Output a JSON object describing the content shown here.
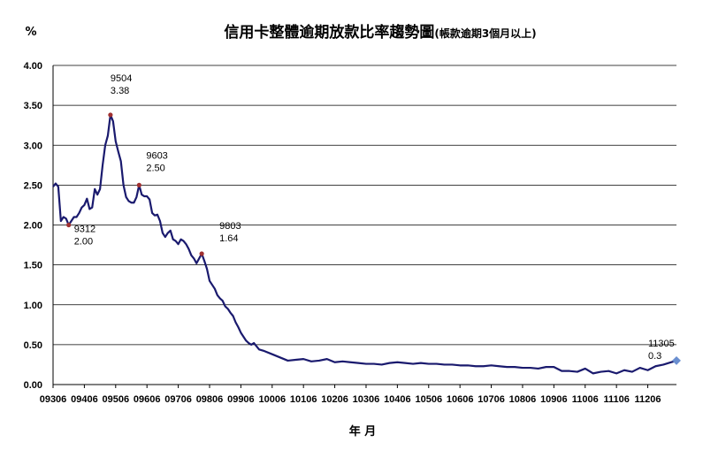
{
  "chart_data": {
    "type": "line",
    "title": "信用卡整體逾期放款比率趨勢圖",
    "title_note": "(帳款逾期3個月以上)",
    "ylabel": "%",
    "xlabel": "年 月",
    "ylim": [
      0,
      4.0
    ],
    "yticks": [
      "0.00",
      "0.50",
      "1.00",
      "1.50",
      "2.00",
      "2.50",
      "3.00",
      "3.50",
      "4.00"
    ],
    "xticks": [
      "09306",
      "09406",
      "09506",
      "09606",
      "09706",
      "09806",
      "09906",
      "10006",
      "10106",
      "10206",
      "10306",
      "10406",
      "10506",
      "10606",
      "10706",
      "10806",
      "10906",
      "11006",
      "11106",
      "11206"
    ],
    "grid": true,
    "legend": "none",
    "colors": {
      "line": "#1a1a6e",
      "marker": "#a03030",
      "end_marker": "#6a8fd0"
    },
    "series": [
      {
        "x": [
          "09306",
          "09307",
          "09308",
          "09309",
          "09310",
          "09311",
          "09312",
          "09401",
          "09402",
          "09403",
          "09404",
          "09405",
          "09406",
          "09407",
          "09408",
          "09409",
          "09410",
          "09411",
          "09412",
          "09501",
          "09502",
          "09503",
          "09504",
          "09505",
          "09506",
          "09507",
          "09508",
          "09509",
          "09510",
          "09511",
          "09512",
          "09601",
          "09602",
          "09603",
          "09604",
          "09605",
          "09606",
          "09607",
          "09608",
          "09609",
          "09610",
          "09611",
          "09612",
          "09701",
          "09702",
          "09703",
          "09704",
          "09705",
          "09706",
          "09707",
          "09708",
          "09709",
          "09710",
          "09711",
          "09712",
          "09801",
          "09802",
          "09803",
          "09804",
          "09805",
          "09806",
          "09807",
          "09808",
          "09809",
          "09810",
          "09811",
          "09812",
          "09901",
          "09902",
          "09903",
          "09904",
          "09905",
          "09906",
          "09907",
          "09908",
          "09909",
          "09910",
          "09911",
          "09912",
          "10001",
          "10002",
          "10003",
          "10006",
          "10009",
          "10012",
          "10103",
          "10106",
          "10109",
          "10112",
          "10203",
          "10206",
          "10209",
          "10212",
          "10303",
          "10306",
          "10309",
          "10312",
          "10403",
          "10406",
          "10409",
          "10412",
          "10503",
          "10506",
          "10509",
          "10512",
          "10603",
          "10606",
          "10609",
          "10612",
          "10703",
          "10706",
          "10709",
          "10712",
          "10803",
          "10806",
          "10809",
          "10812",
          "10903",
          "10906",
          "10909",
          "10912",
          "11003",
          "11006",
          "11009",
          "11012",
          "11103",
          "11106",
          "11109",
          "11112",
          "11203",
          "11206",
          "11209",
          "11212",
          "11303",
          "11305"
        ],
        "values": [
          2.48,
          2.52,
          2.48,
          2.05,
          2.1,
          2.08,
          2.0,
          2.05,
          2.1,
          2.1,
          2.15,
          2.22,
          2.25,
          2.33,
          2.2,
          2.22,
          2.45,
          2.38,
          2.45,
          2.75,
          3.0,
          3.12,
          3.38,
          3.3,
          3.05,
          2.92,
          2.8,
          2.5,
          2.35,
          2.3,
          2.28,
          2.28,
          2.35,
          2.5,
          2.38,
          2.36,
          2.36,
          2.32,
          2.15,
          2.12,
          2.13,
          2.05,
          1.9,
          1.85,
          1.9,
          1.93,
          1.82,
          1.8,
          1.76,
          1.82,
          1.8,
          1.76,
          1.7,
          1.62,
          1.58,
          1.52,
          1.58,
          1.64,
          1.55,
          1.45,
          1.3,
          1.25,
          1.2,
          1.12,
          1.08,
          1.05,
          0.98,
          0.95,
          0.9,
          0.86,
          0.78,
          0.72,
          0.65,
          0.6,
          0.55,
          0.52,
          0.5,
          0.52,
          0.48,
          0.44,
          0.43,
          0.42,
          0.38,
          0.34,
          0.3,
          0.31,
          0.32,
          0.29,
          0.3,
          0.32,
          0.28,
          0.29,
          0.28,
          0.27,
          0.26,
          0.26,
          0.25,
          0.27,
          0.28,
          0.27,
          0.26,
          0.27,
          0.26,
          0.26,
          0.25,
          0.25,
          0.24,
          0.24,
          0.23,
          0.23,
          0.24,
          0.23,
          0.22,
          0.22,
          0.21,
          0.21,
          0.2,
          0.22,
          0.22,
          0.17,
          0.17,
          0.16,
          0.2,
          0.14,
          0.16,
          0.17,
          0.14,
          0.18,
          0.16,
          0.21,
          0.18,
          0.23,
          0.25,
          0.28,
          0.3
        ]
      }
    ],
    "annotations": [
      {
        "x": "09312",
        "label": "9312",
        "value_label": "2.00",
        "value": 2.0
      },
      {
        "x": "09504",
        "label": "9504",
        "value_label": "3.38",
        "value": 3.38
      },
      {
        "x": "09603",
        "label": "9603",
        "value_label": "2.50",
        "value": 2.5
      },
      {
        "x": "09803",
        "label": "9803",
        "value_label": "1.64",
        "value": 1.64
      },
      {
        "x": "11305",
        "label": "11305",
        "value_label": "0.3",
        "value": 0.3
      }
    ]
  }
}
